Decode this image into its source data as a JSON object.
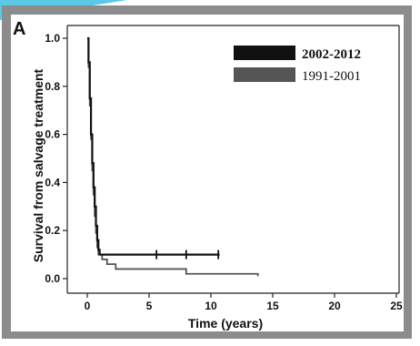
{
  "chart_data": {
    "type": "line",
    "panel_label": "A",
    "title": "",
    "xlabel": "Time (years)",
    "ylabel": "Survival from salvage treatment",
    "xlim": [
      0,
      25
    ],
    "ylim": [
      0,
      1.0
    ],
    "x_ticks": [
      "0",
      "5",
      "10",
      "15",
      "20",
      "25"
    ],
    "y_ticks": [
      "0.0",
      "0.2",
      "0.4",
      "0.6",
      "0.8",
      "1.0"
    ],
    "grid": false,
    "legend_position": "top-right",
    "series": [
      {
        "name": "2002-2012",
        "color": "#111111",
        "step_points": [
          [
            0,
            1.0
          ],
          [
            0.1,
            0.9
          ],
          [
            0.2,
            0.75
          ],
          [
            0.3,
            0.6
          ],
          [
            0.4,
            0.48
          ],
          [
            0.5,
            0.38
          ],
          [
            0.6,
            0.3
          ],
          [
            0.7,
            0.22
          ],
          [
            0.8,
            0.16
          ],
          [
            0.9,
            0.12
          ],
          [
            1.0,
            0.1
          ],
          [
            10.7,
            0.1
          ]
        ],
        "censor_x": [
          5.6,
          8.0,
          10.6
        ]
      },
      {
        "name": "1991-2001",
        "color": "#555555",
        "step_points": [
          [
            0,
            1.0
          ],
          [
            0.1,
            0.88
          ],
          [
            0.2,
            0.72
          ],
          [
            0.3,
            0.58
          ],
          [
            0.4,
            0.45
          ],
          [
            0.5,
            0.35
          ],
          [
            0.6,
            0.26
          ],
          [
            0.7,
            0.19
          ],
          [
            0.8,
            0.13
          ],
          [
            0.9,
            0.1
          ],
          [
            1.2,
            0.08
          ],
          [
            1.6,
            0.06
          ],
          [
            2.3,
            0.04
          ],
          [
            8.0,
            0.04
          ],
          [
            8.0,
            0.02
          ],
          [
            13.8,
            0.02
          ],
          [
            13.8,
            0.01
          ]
        ],
        "censor_x": []
      }
    ]
  }
}
